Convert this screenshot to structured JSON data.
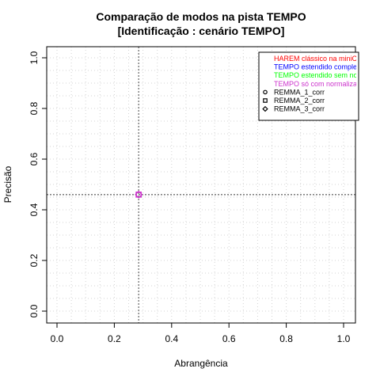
{
  "chart_data": {
    "type": "scatter",
    "title": "Comparação de modos na pista TEMPO",
    "subtitle": "[Identificação : cenário TEMPO]",
    "xlabel": "Abrangência",
    "ylabel": "Precisão",
    "xlim": [
      0,
      1
    ],
    "ylim": [
      0,
      1
    ],
    "x_ticks": [
      "0.0",
      "0.2",
      "0.4",
      "0.6",
      "0.8",
      "1.0"
    ],
    "y_ticks": [
      "0.0",
      "0.2",
      "0.4",
      "0.6",
      "0.8",
      "1.0"
    ],
    "grid": true,
    "reference_lines": {
      "vertical_x": 0.285,
      "horizontal_y": 0.46
    },
    "legend_position": "top-right",
    "legend": {
      "colored_entries": [
        {
          "label": "HAREM clássico na miniC",
          "color": "#ff0000"
        },
        {
          "label": "TEMPO estendido comple",
          "color": "#0000ff"
        },
        {
          "label": "TEMPO estendido sem no",
          "color": "#00ff00"
        },
        {
          "label": "TEMPO só com normaliza",
          "color": "#cc33cc"
        }
      ],
      "symbol_entries": [
        {
          "label": "REMMA_1_corr",
          "symbol": "circle"
        },
        {
          "label": "REMMA_2_corr",
          "symbol": "square"
        },
        {
          "label": "REMMA_3_corr",
          "symbol": "diamond"
        }
      ]
    },
    "series": [
      {
        "name": "TEMPO só com normaliza",
        "color": "#cc33cc",
        "points": [
          {
            "x": 0.285,
            "y": 0.46,
            "symbol": "circle"
          },
          {
            "x": 0.285,
            "y": 0.46,
            "symbol": "square"
          },
          {
            "x": 0.285,
            "y": 0.46,
            "symbol": "diamond"
          }
        ]
      }
    ]
  }
}
